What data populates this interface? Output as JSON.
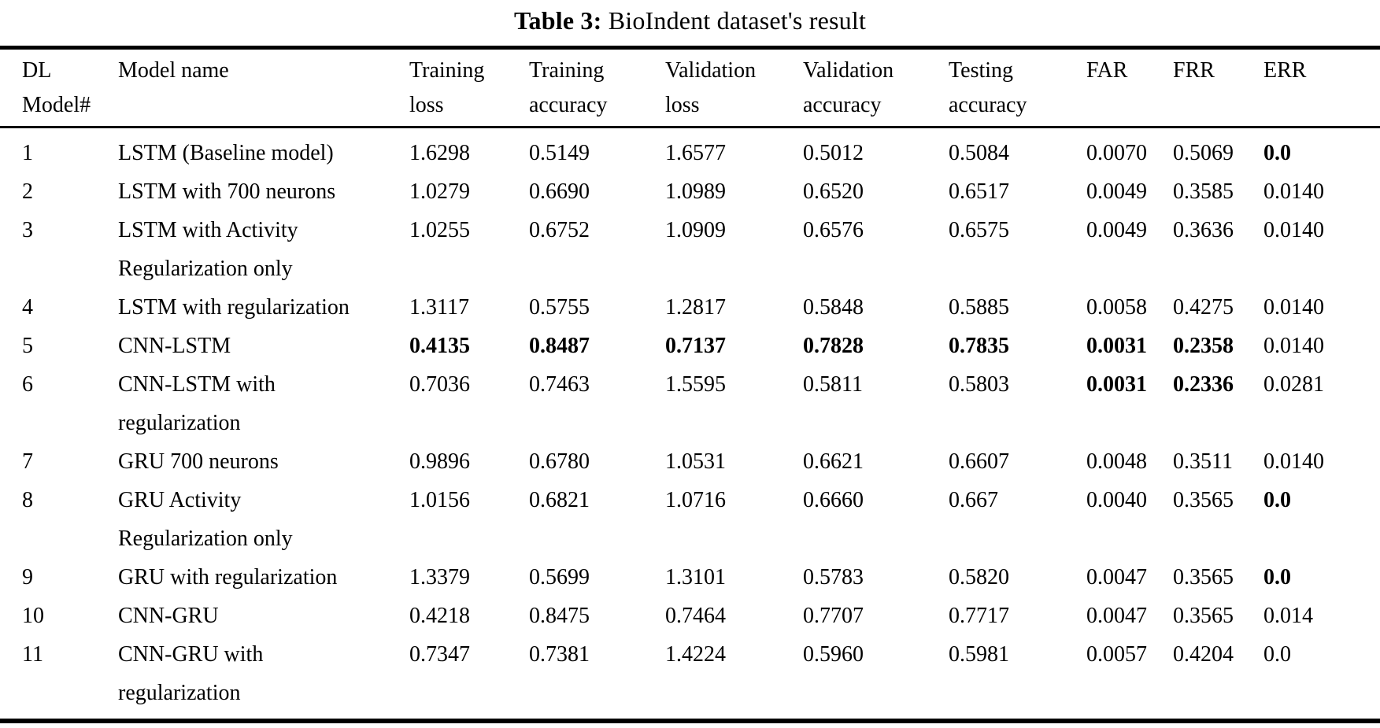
{
  "title": {
    "label": "Table 3:",
    "text": "BioIndent dataset's result"
  },
  "table": {
    "columns": [
      {
        "label": "DL\nModel#"
      },
      {
        "label": "Model name"
      },
      {
        "label": "Training\nloss"
      },
      {
        "label": "Training\naccuracy"
      },
      {
        "label": "Validation\nloss"
      },
      {
        "label": "Validation\naccuracy"
      },
      {
        "label": "Testing\naccuracy"
      },
      {
        "label": "FAR"
      },
      {
        "label": "FRR"
      },
      {
        "label": "ERR"
      }
    ],
    "rows": [
      {
        "num": "1",
        "name": "LSTM (Baseline model)",
        "values": [
          "1.6298",
          "0.5149",
          "1.6577",
          "0.5012",
          "0.5084",
          "0.0070",
          "0.5069",
          "0.0"
        ],
        "bold": [
          false,
          false,
          false,
          false,
          false,
          false,
          false,
          true
        ]
      },
      {
        "num": "2",
        "name": "LSTM with 700 neurons",
        "values": [
          "1.0279",
          "0.6690",
          "1.0989",
          "0.6520",
          "0.6517",
          "0.0049",
          "0.3585",
          "0.0140"
        ],
        "bold": [
          false,
          false,
          false,
          false,
          false,
          false,
          false,
          false
        ]
      },
      {
        "num": "3",
        "name": "LSTM with Activity\nRegularization only",
        "values": [
          "1.0255",
          "0.6752",
          "1.0909",
          "0.6576",
          "0.6575",
          "0.0049",
          "0.3636",
          "0.0140"
        ],
        "bold": [
          false,
          false,
          false,
          false,
          false,
          false,
          false,
          false
        ]
      },
      {
        "num": "4",
        "name": "LSTM with regularization",
        "values": [
          "1.3117",
          "0.5755",
          "1.2817",
          "0.5848",
          "0.5885",
          "0.0058",
          "0.4275",
          "0.0140"
        ],
        "bold": [
          false,
          false,
          false,
          false,
          false,
          false,
          false,
          false
        ]
      },
      {
        "num": "5",
        "name": "CNN-LSTM",
        "values": [
          "0.4135",
          "0.8487",
          "0.7137",
          "0.7828",
          "0.7835",
          "0.0031",
          "0.2358",
          "0.0140"
        ],
        "bold": [
          true,
          true,
          true,
          true,
          true,
          true,
          true,
          false
        ]
      },
      {
        "num": "6",
        "name": "CNN-LSTM with\nregularization",
        "values": [
          "0.7036",
          "0.7463",
          "1.5595",
          "0.5811",
          "0.5803",
          "0.0031",
          "0.2336",
          "0.0281"
        ],
        "bold": [
          false,
          false,
          false,
          false,
          false,
          true,
          true,
          false
        ]
      },
      {
        "num": "7",
        "name": "GRU 700 neurons",
        "values": [
          "0.9896",
          "0.6780",
          "1.0531",
          "0.6621",
          "0.6607",
          "0.0048",
          "0.3511",
          "0.0140"
        ],
        "bold": [
          false,
          false,
          false,
          false,
          false,
          false,
          false,
          false
        ]
      },
      {
        "num": "8",
        "name": "GRU Activity\nRegularization only",
        "values": [
          "1.0156",
          "0.6821",
          "1.0716",
          "0.6660",
          "0.667",
          "0.0040",
          "0.3565",
          "0.0"
        ],
        "bold": [
          false,
          false,
          false,
          false,
          false,
          false,
          false,
          true
        ]
      },
      {
        "num": "9",
        "name": "GRU with regularization",
        "values": [
          "1.3379",
          "0.5699",
          "1.3101",
          "0.5783",
          "0.5820",
          "0.0047",
          "0.3565",
          "0.0"
        ],
        "bold": [
          false,
          false,
          false,
          false,
          false,
          false,
          false,
          true
        ]
      },
      {
        "num": "10",
        "name": "CNN-GRU",
        "values": [
          "0.4218",
          "0.8475",
          "0.7464",
          "0.7707",
          "0.7717",
          "0.0047",
          "0.3565",
          "0.014"
        ],
        "bold": [
          false,
          false,
          false,
          false,
          false,
          false,
          false,
          false
        ]
      },
      {
        "num": "11",
        "name": "CNN-GRU with\nregularization",
        "values": [
          "0.7347",
          "0.7381",
          "1.4224",
          "0.5960",
          "0.5981",
          "0.0057",
          "0.4204",
          "0.0"
        ],
        "bold": [
          false,
          false,
          false,
          false,
          false,
          false,
          false,
          false
        ]
      }
    ]
  }
}
